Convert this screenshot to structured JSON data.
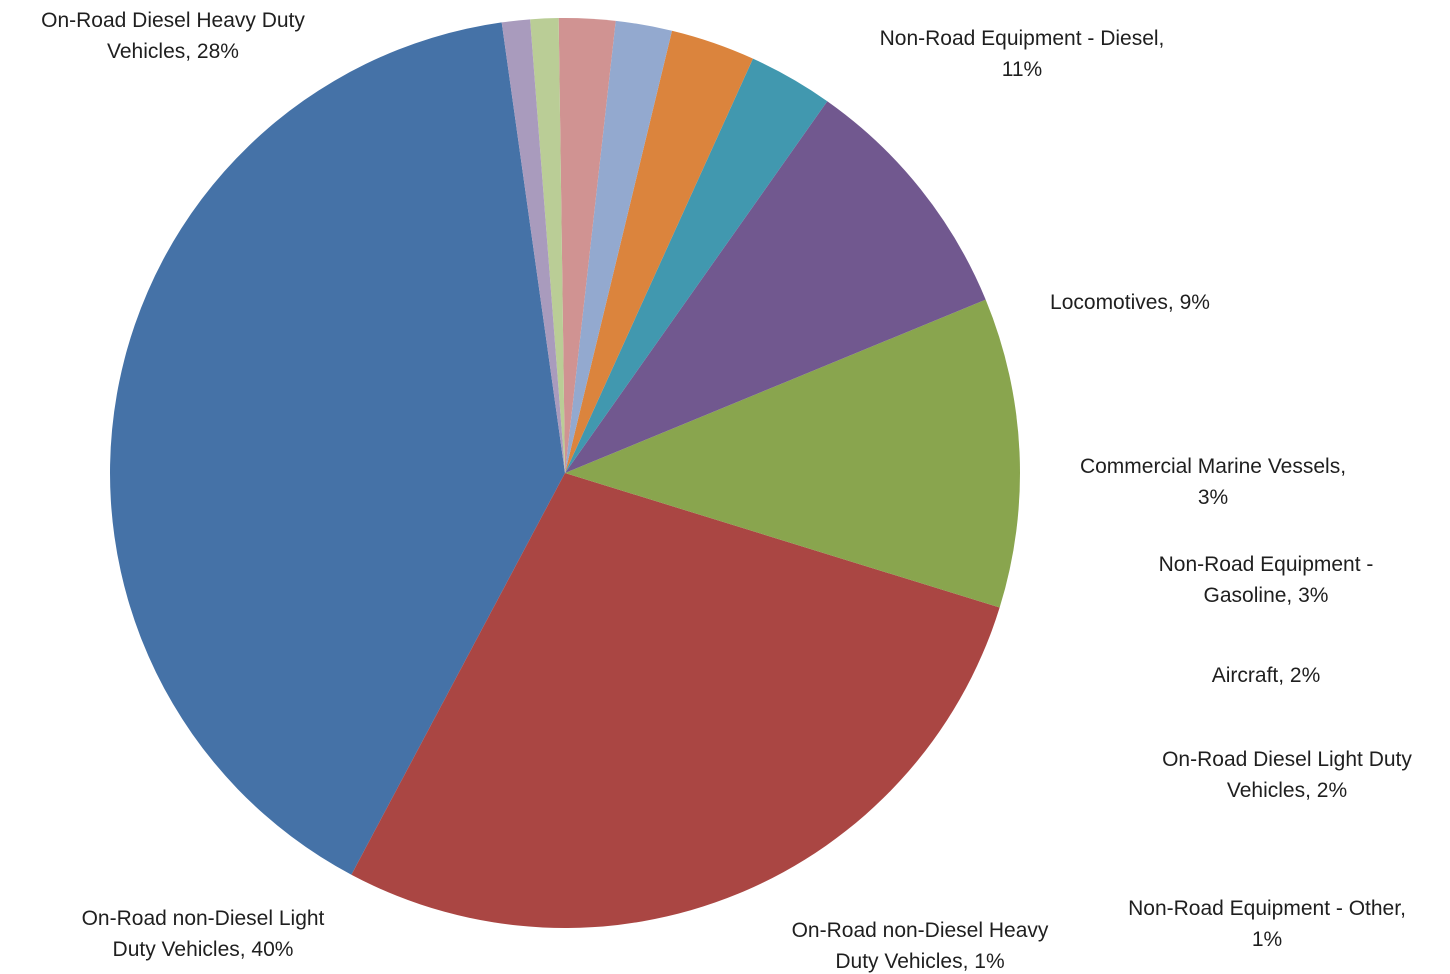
{
  "chart_data": {
    "type": "pie",
    "title": "",
    "start_angle_deg": -8,
    "direction": "clockwise",
    "legend": "none",
    "slices": [
      {
        "name": "On-Road non-Diesel Light Duty Vehicles",
        "value": 40,
        "color": "#4572A7",
        "label_lines": [
          "On-Road non-Diesel Light",
          "Duty Vehicles, 40%"
        ]
      },
      {
        "name": "On-Road Diesel Heavy Duty Vehicles",
        "value": 28,
        "color": "#AA4643",
        "label_lines": [
          "On-Road Diesel Heavy Duty",
          "Vehicles, 28%"
        ]
      },
      {
        "name": "Non-Road Equipment - Diesel",
        "value": 11,
        "color": "#89A54E",
        "label_lines": [
          "Non-Road Equipment - Diesel,",
          "11%"
        ]
      },
      {
        "name": "Locomotives",
        "value": 9,
        "color": "#71588F",
        "label_lines": [
          "Locomotives, 9%"
        ]
      },
      {
        "name": "Commercial Marine Vessels",
        "value": 3,
        "color": "#4198AF",
        "label_lines": [
          "Commercial Marine Vessels,",
          "3%"
        ]
      },
      {
        "name": "Non-Road Equipment - Gasoline",
        "value": 3,
        "color": "#DB843D",
        "label_lines": [
          "Non-Road Equipment -",
          "Gasoline, 3%"
        ]
      },
      {
        "name": "Aircraft",
        "value": 2,
        "color": "#93A9CF",
        "label_lines": [
          "Aircraft, 2%"
        ]
      },
      {
        "name": "On-Road Diesel Light Duty Vehicles",
        "value": 2,
        "color": "#D09392",
        "label_lines": [
          "On-Road Diesel Light Duty",
          "Vehicles, 2%"
        ]
      },
      {
        "name": "Non-Road Equipment - Other",
        "value": 1,
        "color": "#BACD96",
        "label_lines": [
          "Non-Road Equipment - Other,",
          "1%"
        ]
      },
      {
        "name": "On-Road non-Diesel Heavy Duty Vehicles",
        "value": 1,
        "color": "#A99BBD",
        "label_lines": [
          "On-Road non-Diesel Heavy",
          "Duty Vehicles, 1%"
        ]
      }
    ]
  }
}
